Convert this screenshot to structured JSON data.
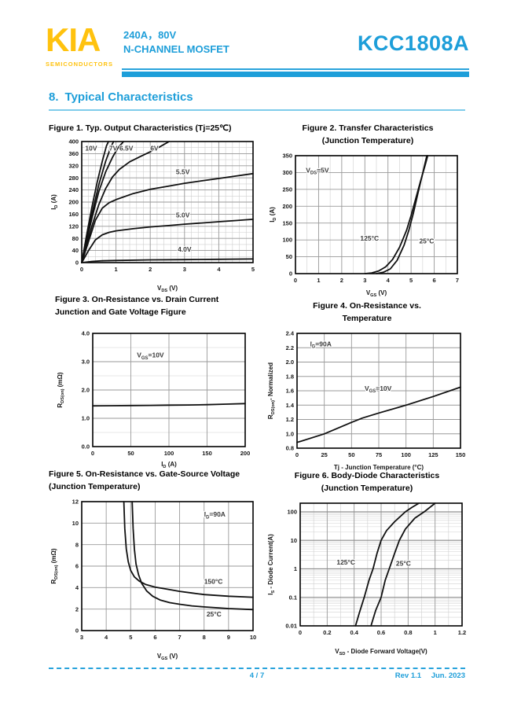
{
  "header": {
    "logo": "KIA",
    "logo_sub": "SEMICONDUCTORS",
    "rating": "240A，80V",
    "device_type": "N-CHANNEL MOSFET",
    "part_number": "KCC1808A"
  },
  "section": {
    "number": "8.",
    "title": "Typical Characteristics"
  },
  "footer": {
    "page": "4 / 7",
    "rev": "Rev 1.1",
    "date": "Jun. 2023"
  },
  "colors": {
    "brand_blue": "#1d9ed9",
    "logo_yellow": "#ffc20e",
    "curve_black": "#101010",
    "grid_gray": "#9a9a9a"
  },
  "chart_data": [
    {
      "type": "line",
      "title": "Figure 1. Typ. Output Characteristics (Tj=25℃)",
      "title2": "",
      "xlabel": "V<sub>DS</sub> (V)",
      "ylabel": "I<sub>D</sub> (A)",
      "xlim": [
        0,
        5
      ],
      "ylim": [
        0,
        400
      ],
      "xticks": [
        0,
        1,
        2,
        3,
        4,
        5
      ],
      "yticks": [
        0,
        40,
        80,
        120,
        160,
        200,
        240,
        280,
        320,
        360,
        400
      ],
      "x_minor": 0.2,
      "y_minor": 20,
      "series": [
        {
          "name": "10V",
          "points": [
            [
              0,
              0
            ],
            [
              0.15,
              95
            ],
            [
              0.3,
              185
            ],
            [
              0.45,
              265
            ],
            [
              0.6,
              335
            ],
            [
              0.72,
              385
            ],
            [
              0.78,
              400
            ]
          ]
        },
        {
          "name": "7V",
          "points": [
            [
              0,
              0
            ],
            [
              0.15,
              82
            ],
            [
              0.3,
              162
            ],
            [
              0.5,
              258
            ],
            [
              0.7,
              335
            ],
            [
              0.85,
              382
            ],
            [
              0.93,
              400
            ]
          ]
        },
        {
          "name": "6.5V",
          "points": [
            [
              0,
              0
            ],
            [
              0.15,
              75
            ],
            [
              0.3,
              148
            ],
            [
              0.5,
              235
            ],
            [
              0.7,
              300
            ],
            [
              0.9,
              348
            ],
            [
              1.05,
              378
            ],
            [
              1.22,
              400
            ]
          ]
        },
        {
          "name": "6V",
          "points": [
            [
              0,
              0
            ],
            [
              0.15,
              62
            ],
            [
              0.3,
              122
            ],
            [
              0.5,
              192
            ],
            [
              0.7,
              245
            ],
            [
              0.9,
              283
            ],
            [
              1.1,
              308
            ],
            [
              1.4,
              333
            ],
            [
              1.7,
              350
            ],
            [
              2.0,
              366
            ],
            [
              2.3,
              384
            ],
            [
              2.55,
              400
            ]
          ]
        },
        {
          "name": "5.5V",
          "points": [
            [
              0,
              0
            ],
            [
              0.2,
              70
            ],
            [
              0.4,
              140
            ],
            [
              0.6,
              180
            ],
            [
              0.8,
              198
            ],
            [
              1.0,
              208
            ],
            [
              1.5,
              228
            ],
            [
              2.0,
              242
            ],
            [
              2.5,
              252
            ],
            [
              3.0,
              262
            ],
            [
              3.5,
              270
            ],
            [
              4.0,
              278
            ],
            [
              4.5,
              286
            ],
            [
              5.0,
              294
            ]
          ]
        },
        {
          "name": "5.0V",
          "points": [
            [
              0,
              0
            ],
            [
              0.2,
              40
            ],
            [
              0.4,
              75
            ],
            [
              0.6,
              92
            ],
            [
              0.8,
              100
            ],
            [
              1.0,
              105
            ],
            [
              1.5,
              112
            ],
            [
              2.0,
              118
            ],
            [
              2.5,
              122
            ],
            [
              3.0,
              127
            ],
            [
              3.5,
              131
            ],
            [
              4.0,
              135
            ],
            [
              4.5,
              139
            ],
            [
              5.0,
              143
            ]
          ]
        },
        {
          "name": "4.0V",
          "points": [
            [
              0,
              0
            ],
            [
              0.3,
              4
            ],
            [
              0.6,
              6
            ],
            [
              1.0,
              7
            ],
            [
              2.0,
              9
            ],
            [
              3.0,
              10
            ],
            [
              4.0,
              11
            ],
            [
              5.0,
              12
            ]
          ]
        }
      ],
      "annotations": [
        {
          "text": "10V",
          "x": 0.1,
          "y": 370
        },
        {
          "text": "7V",
          "x": 0.8,
          "y": 370
        },
        {
          "text": "6.5V",
          "x": 1.1,
          "y": 370
        },
        {
          "text": "6V",
          "x": 2.0,
          "y": 370
        },
        {
          "text": "5.5V",
          "x": 2.75,
          "y": 292
        },
        {
          "text": "5.0V",
          "x": 2.75,
          "y": 150
        },
        {
          "text": "4.0V",
          "x": 2.8,
          "y": 36
        }
      ]
    },
    {
      "type": "line",
      "title": "Figure 2. Transfer Characteristics",
      "title2": "(Junction Temperature)",
      "xlabel": "V<sub>GS</sub> (V)",
      "ylabel": "I<sub>D</sub> (A)",
      "xlim": [
        0,
        7
      ],
      "ylim": [
        0,
        350
      ],
      "xticks": [
        0,
        1,
        2,
        3,
        4,
        5,
        6,
        7
      ],
      "yticks": [
        0,
        50,
        100,
        150,
        200,
        250,
        300,
        350
      ],
      "x_minor": 0.5,
      "y_minor": 0,
      "series": [
        {
          "name": "125°C",
          "points": [
            [
              3.0,
              0
            ],
            [
              3.3,
              2
            ],
            [
              3.6,
              8
            ],
            [
              3.9,
              20
            ],
            [
              4.2,
              42
            ],
            [
              4.5,
              78
            ],
            [
              4.8,
              128
            ],
            [
              5.0,
              172
            ],
            [
              5.2,
              222
            ],
            [
              5.4,
              272
            ],
            [
              5.6,
              320
            ],
            [
              5.72,
              350
            ]
          ]
        },
        {
          "name": "25°C",
          "points": [
            [
              3.5,
              0
            ],
            [
              3.8,
              4
            ],
            [
              4.1,
              14
            ],
            [
              4.4,
              40
            ],
            [
              4.7,
              85
            ],
            [
              4.9,
              128
            ],
            [
              5.1,
              180
            ],
            [
              5.3,
              240
            ],
            [
              5.5,
              298
            ],
            [
              5.68,
              350
            ]
          ]
        }
      ],
      "annotations": [
        {
          "text": "V<sub>DS</sub>=5V",
          "x": 0.45,
          "y": 300
        },
        {
          "text": "125°C",
          "x": 2.8,
          "y": 98
        },
        {
          "text": "25°C",
          "x": 5.35,
          "y": 90
        }
      ]
    },
    {
      "type": "line",
      "title": "Figure 3. On-Resistance vs. Drain Current",
      "title2": "Junction and Gate Voltage Figure",
      "xlabel": "I<sub>D</sub> (A)",
      "ylabel": "R<sub>DS(on)</sub> (mΩ)",
      "xlim": [
        0,
        200
      ],
      "ylim": [
        0,
        4
      ],
      "xticks": [
        0,
        50,
        100,
        150,
        200
      ],
      "yticks": [
        0,
        1,
        2,
        3,
        4
      ],
      "ytick_labels": [
        "0.0",
        "1.0",
        "2.0",
        "3.0",
        "4.0"
      ],
      "x_minor": 0,
      "y_minor": 0.5,
      "series": [
        {
          "name": "RDS(on)",
          "points": [
            [
              0,
              1.44
            ],
            [
              25,
              1.445
            ],
            [
              50,
              1.45
            ],
            [
              75,
              1.455
            ],
            [
              100,
              1.465
            ],
            [
              125,
              1.47
            ],
            [
              150,
              1.48
            ],
            [
              175,
              1.5
            ],
            [
              200,
              1.52
            ]
          ]
        }
      ],
      "annotations": [
        {
          "text": "V<sub>GS</sub>=10V",
          "x": 58,
          "y": 3.15
        }
      ]
    },
    {
      "type": "line",
      "title": "Figure 4. On-Resistance vs.",
      "title2": "Temperature",
      "xlabel": "Tj - Junction Temperature (°C)",
      "ylabel": "R<sub>DS(on)</sub>- Normalized",
      "xlim": [
        0,
        150
      ],
      "ylim": [
        0.8,
        2.4
      ],
      "xticks": [
        0,
        25,
        50,
        75,
        100,
        125,
        150
      ],
      "yticks": [
        0.8,
        1,
        1.2,
        1.4,
        1.6,
        1.8,
        2,
        2.2,
        2.4
      ],
      "ytick_labels": [
        "0.8",
        "1.0",
        "1.2",
        "1.4",
        "1.6",
        "1.8",
        "2.0",
        "2.2",
        "2.4"
      ],
      "x_minor": 0,
      "y_minor": 0,
      "series": [
        {
          "name": "normalized RDS(on)",
          "points": [
            [
              0,
              0.88
            ],
            [
              25,
              1.0
            ],
            [
              50,
              1.16
            ],
            [
              60,
              1.22
            ],
            [
              75,
              1.29
            ],
            [
              100,
              1.4
            ],
            [
              125,
              1.52
            ],
            [
              150,
              1.65
            ]
          ]
        }
      ],
      "annotations": [
        {
          "text": "I<sub>D</sub>=90A",
          "x": 12,
          "y": 2.22
        },
        {
          "text": "V<sub>GS</sub>=10V",
          "x": 62,
          "y": 1.6
        }
      ]
    },
    {
      "type": "line",
      "title": "Figure 5. On-Resistance vs. Gate-Source Voltage",
      "title2": "(Junction Temperature)",
      "xlabel": "V<sub>GS</sub> (V)",
      "ylabel": "R<sub>DS(on)</sub> (mΩ)",
      "xlim": [
        3,
        10
      ],
      "ylim": [
        0,
        12
      ],
      "xticks": [
        3,
        4,
        5,
        6,
        7,
        8,
        9,
        10
      ],
      "yticks": [
        0,
        2,
        4,
        6,
        8,
        10,
        12
      ],
      "x_minor": 0,
      "y_minor": 0,
      "series": [
        {
          "name": "150°C",
          "points": [
            [
              4.72,
              12
            ],
            [
              4.76,
              9.5
            ],
            [
              4.82,
              7.6
            ],
            [
              4.9,
              6.4
            ],
            [
              5.0,
              5.6
            ],
            [
              5.15,
              5.0
            ],
            [
              5.35,
              4.6
            ],
            [
              5.6,
              4.3
            ],
            [
              6.0,
              4.05
            ],
            [
              6.5,
              3.85
            ],
            [
              7.0,
              3.65
            ],
            [
              7.5,
              3.5
            ],
            [
              8.0,
              3.35
            ],
            [
              9.0,
              3.2
            ],
            [
              10.0,
              3.1
            ]
          ]
        },
        {
          "name": "25°C",
          "points": [
            [
              5.06,
              12
            ],
            [
              5.1,
              9.5
            ],
            [
              5.15,
              7.6
            ],
            [
              5.22,
              6.2
            ],
            [
              5.32,
              5.2
            ],
            [
              5.45,
              4.4
            ],
            [
              5.65,
              3.7
            ],
            [
              5.9,
              3.2
            ],
            [
              6.2,
              2.85
            ],
            [
              6.6,
              2.6
            ],
            [
              7.0,
              2.45
            ],
            [
              7.5,
              2.3
            ],
            [
              8.0,
              2.2
            ],
            [
              9.0,
              2.05
            ],
            [
              10.0,
              1.95
            ]
          ]
        }
      ],
      "annotations": [
        {
          "text": "I<sub>D</sub>=90A",
          "x": 8.0,
          "y": 10.6
        },
        {
          "text": "150°C",
          "x": 8.0,
          "y": 4.35
        },
        {
          "text": "25°C",
          "x": 8.1,
          "y": 1.3
        }
      ]
    },
    {
      "type": "line",
      "title": "Figure 6. Body-Diode Characteristics",
      "title2": "(Junction Temperature)",
      "xlabel": "V<sub>SD</sub> - Diode Forward Voltage(V)",
      "ylabel": "I<sub>S</sub> - Diode Current(A)",
      "xlim": [
        0,
        1.2
      ],
      "ylim": [
        0.01,
        200
      ],
      "yscale": "log",
      "xticks": [
        0,
        0.2,
        0.4,
        0.6,
        0.8,
        1,
        1.2
      ],
      "xtick_labels": [
        "0",
        "0.2",
        "0.4",
        "0.6",
        "0.8",
        "1",
        "1.2"
      ],
      "yticks": [
        0.01,
        0.1,
        1,
        10,
        100
      ],
      "ytick_labels": [
        "0.01",
        "0.1",
        "1",
        "10",
        "100"
      ],
      "x_minor": 0.1,
      "y_minor": 0,
      "series": [
        {
          "name": "125°C",
          "points": [
            [
              0.41,
              0.01
            ],
            [
              0.44,
              0.03
            ],
            [
              0.475,
              0.1
            ],
            [
              0.51,
              0.4
            ],
            [
              0.54,
              1
            ],
            [
              0.57,
              3.5
            ],
            [
              0.6,
              10
            ],
            [
              0.64,
              22
            ],
            [
              0.7,
              45
            ],
            [
              0.78,
              100
            ],
            [
              0.83,
              145
            ],
            [
              0.88,
              200
            ]
          ]
        },
        {
          "name": "25°C",
          "points": [
            [
              0.525,
              0.01
            ],
            [
              0.56,
              0.035
            ],
            [
              0.6,
              0.1
            ],
            [
              0.63,
              0.4
            ],
            [
              0.66,
              1
            ],
            [
              0.7,
              3.5
            ],
            [
              0.735,
              10
            ],
            [
              0.78,
              25
            ],
            [
              0.85,
              60
            ],
            [
              0.92,
              100
            ],
            [
              1.0,
              200
            ]
          ]
        }
      ],
      "annotations": [
        {
          "text": "125°C",
          "x": 0.27,
          "y": 1.4
        },
        {
          "text": "25°C",
          "x": 0.71,
          "y": 1.3
        }
      ]
    }
  ]
}
